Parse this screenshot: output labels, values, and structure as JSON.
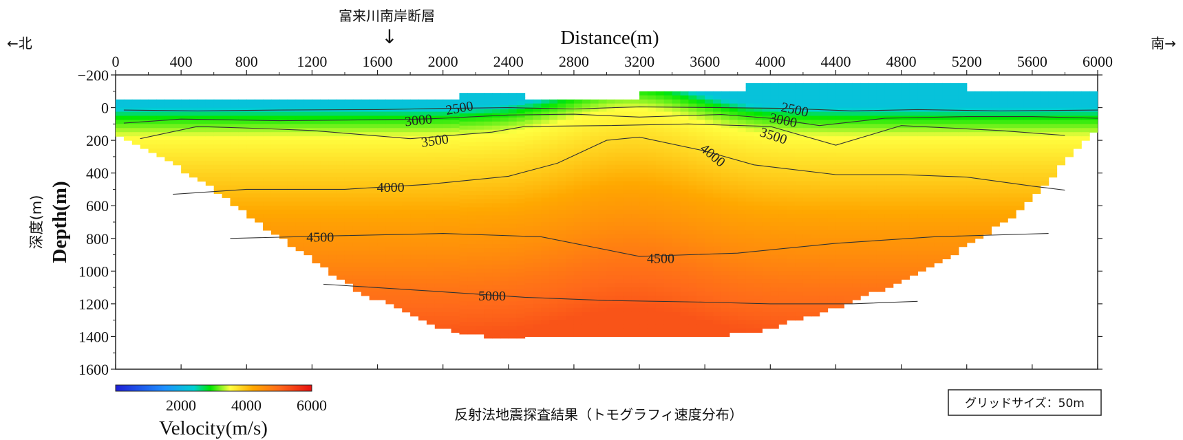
{
  "figure": {
    "fault_label": "富来川南岸断層",
    "fault_arrow": "↓",
    "north_label": "←北",
    "south_label": "南→",
    "caption": "反射法地震探査結果（トモグラフィ速度分布）",
    "grid_size_label": "グリッドサイズ：50m"
  },
  "chart_data": {
    "type": "heatmap",
    "title": "",
    "xlabel": "Distance(m)",
    "ylabel": "Depth(m)",
    "ylabel_jp": "深度(m)",
    "xlim": [
      0,
      6000
    ],
    "ylim": [
      1600,
      -200
    ],
    "x_ticks": [
      0,
      400,
      800,
      1200,
      1600,
      2000,
      2400,
      2800,
      3200,
      3600,
      4000,
      4400,
      4800,
      5200,
      5600,
      6000
    ],
    "y_ticks": [
      -200,
      0,
      200,
      400,
      600,
      800,
      1000,
      1200,
      1400,
      1600
    ],
    "fault_position_x": 1680,
    "surface_elevation": [
      {
        "x_from": 0,
        "x_to": 2100,
        "depth": 50
      },
      {
        "x_from": 2100,
        "x_to": 2500,
        "depth": 90
      },
      {
        "x_from": 2500,
        "x_to": 3200,
        "depth": 50
      },
      {
        "x_from": 3200,
        "x_to": 3850,
        "depth": 100
      },
      {
        "x_from": 3850,
        "x_to": 5200,
        "depth": 150
      },
      {
        "x_from": 5200,
        "x_to": 6000,
        "depth": 100
      }
    ],
    "velocity_profile": [
      {
        "depth": 0,
        "velocity": 2200
      },
      {
        "depth": 60,
        "velocity": 2900
      },
      {
        "depth": 100,
        "velocity": 3100
      },
      {
        "depth": 180,
        "velocity": 3500
      },
      {
        "depth": 300,
        "velocity": 3700
      },
      {
        "depth": 500,
        "velocity": 4000
      },
      {
        "depth": 700,
        "velocity": 4300
      },
      {
        "depth": 900,
        "velocity": 4550
      },
      {
        "depth": 1100,
        "velocity": 4850
      },
      {
        "depth": 1300,
        "velocity": 5100
      },
      {
        "depth": 1400,
        "velocity": 5250
      }
    ],
    "coverage_bottom": [
      {
        "x": 0,
        "depth": 140
      },
      {
        "x": 500,
        "depth": 420
      },
      {
        "x": 1000,
        "depth": 780
      },
      {
        "x": 1500,
        "depth": 1120
      },
      {
        "x": 2000,
        "depth": 1340
      },
      {
        "x": 2300,
        "depth": 1400
      },
      {
        "x": 3600,
        "depth": 1400
      },
      {
        "x": 4000,
        "depth": 1340
      },
      {
        "x": 4500,
        "depth": 1180
      },
      {
        "x": 5000,
        "depth": 960
      },
      {
        "x": 5500,
        "depth": 640
      },
      {
        "x": 6000,
        "depth": 110
      }
    ],
    "contours": [
      {
        "level": 2500,
        "points": [
          [
            50,
            15
          ],
          [
            500,
            20
          ],
          [
            1000,
            15
          ],
          [
            1600,
            12
          ],
          [
            2000,
            5
          ],
          [
            2400,
            0
          ],
          [
            2800,
            8
          ],
          [
            3200,
            -5
          ],
          [
            3700,
            0
          ],
          [
            4100,
            5
          ],
          [
            4500,
            20
          ],
          [
            4900,
            12
          ],
          [
            5400,
            20
          ],
          [
            6000,
            15
          ]
        ]
      },
      {
        "level": 3000,
        "points": [
          [
            50,
            95
          ],
          [
            400,
            70
          ],
          [
            1000,
            80
          ],
          [
            1800,
            72
          ],
          [
            2000,
            65
          ],
          [
            2400,
            45
          ],
          [
            2800,
            40
          ],
          [
            3200,
            58
          ],
          [
            3700,
            42
          ],
          [
            4000,
            65
          ],
          [
            4300,
            110
          ],
          [
            4700,
            65
          ],
          [
            5200,
            55
          ],
          [
            5600,
            55
          ],
          [
            6000,
            65
          ]
        ]
      },
      {
        "level": 3500,
        "points": [
          [
            150,
            190
          ],
          [
            500,
            115
          ],
          [
            900,
            128
          ],
          [
            1200,
            140
          ],
          [
            1800,
            190
          ],
          [
            2300,
            150
          ],
          [
            2500,
            115
          ],
          [
            3000,
            110
          ],
          [
            3500,
            100
          ],
          [
            4000,
            115
          ],
          [
            4400,
            230
          ],
          [
            4800,
            110
          ],
          [
            5400,
            140
          ],
          [
            5800,
            170
          ]
        ]
      },
      {
        "level": 4000,
        "points": [
          [
            350,
            530
          ],
          [
            800,
            500
          ],
          [
            1400,
            500
          ],
          [
            1900,
            470
          ],
          [
            2400,
            420
          ],
          [
            2700,
            340
          ],
          [
            3000,
            200
          ],
          [
            3200,
            180
          ],
          [
            3600,
            265
          ],
          [
            3900,
            350
          ],
          [
            4400,
            410
          ],
          [
            4800,
            410
          ],
          [
            5200,
            425
          ],
          [
            5600,
            480
          ],
          [
            5800,
            505
          ]
        ]
      },
      {
        "level": 4500,
        "points": [
          [
            700,
            800
          ],
          [
            1300,
            785
          ],
          [
            2000,
            770
          ],
          [
            2600,
            790
          ],
          [
            3200,
            910
          ],
          [
            3800,
            890
          ],
          [
            4400,
            830
          ],
          [
            5000,
            790
          ],
          [
            5700,
            770
          ]
        ]
      },
      {
        "level": 5000,
        "points": [
          [
            1270,
            1080
          ],
          [
            1900,
            1120
          ],
          [
            2500,
            1160
          ],
          [
            3000,
            1180
          ],
          [
            3600,
            1190
          ],
          [
            4000,
            1200
          ],
          [
            4500,
            1200
          ],
          [
            4900,
            1185
          ]
        ]
      }
    ],
    "contour_labels": [
      {
        "level": 2500,
        "text": "2500",
        "x": 2100,
        "y": 0,
        "angle": -10
      },
      {
        "level": 3000,
        "text": "3000",
        "x": 1850,
        "y": 75,
        "angle": -6
      },
      {
        "level": 3500,
        "text": "3500",
        "x": 1950,
        "y": 200,
        "angle": -8
      },
      {
        "level": 4000,
        "text": "4000",
        "x": 1680,
        "y": 485,
        "angle": 0
      },
      {
        "level": 4500,
        "text": "4500",
        "x": 1250,
        "y": 790,
        "angle": 0
      },
      {
        "level": 4500,
        "text": "4500",
        "x": 3330,
        "y": 920,
        "angle": 0
      },
      {
        "level": 5000,
        "text": "5000",
        "x": 2300,
        "y": 1150,
        "angle": 0
      },
      {
        "level": 2500,
        "text": "2500",
        "x": 4150,
        "y": 10,
        "angle": 12
      },
      {
        "level": 3000,
        "text": "3000",
        "x": 4080,
        "y": 75,
        "angle": 12
      },
      {
        "level": 3500,
        "text": "3500",
        "x": 4020,
        "y": 170,
        "angle": 18
      },
      {
        "level": 4000,
        "text": "4000",
        "x": 3650,
        "y": 290,
        "angle": 40
      }
    ],
    "colorbar": {
      "label": "Velocity(m/s)",
      "min": 0,
      "max": 6000,
      "ticks": [
        2000,
        4000,
        6000
      ],
      "colors": [
        {
          "v": 0,
          "color": "#1f1fd6"
        },
        {
          "v": 1500,
          "color": "#1e90ff"
        },
        {
          "v": 2400,
          "color": "#00d0d0"
        },
        {
          "v": 2900,
          "color": "#00e600"
        },
        {
          "v": 3500,
          "color": "#ffff40"
        },
        {
          "v": 4200,
          "color": "#ffa800"
        },
        {
          "v": 5000,
          "color": "#ff6a1a"
        },
        {
          "v": 6000,
          "color": "#e81010"
        }
      ]
    }
  }
}
